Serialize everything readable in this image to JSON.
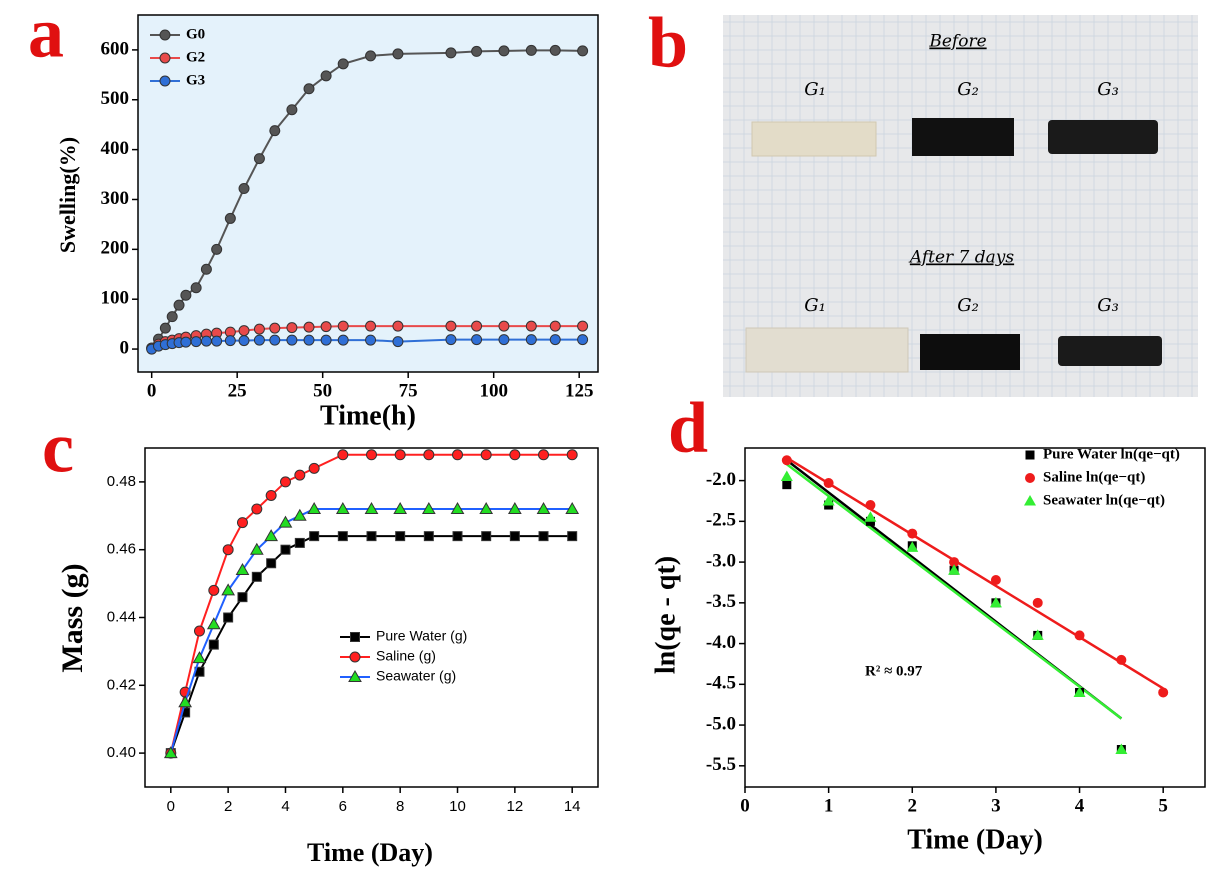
{
  "panel_labels": [
    "a",
    "b",
    "c",
    "d"
  ],
  "photo": {
    "rows": [
      {
        "title": "Before",
        "labels": [
          "G₁",
          "G₂",
          "G₃"
        ]
      },
      {
        "title": "After 7 days",
        "labels": [
          "G₁",
          "G₂",
          "G₃"
        ]
      }
    ]
  },
  "chart_data": [
    {
      "type": "line",
      "xlabel": "Time(h)",
      "ylabel": "Swelling(%)",
      "background": "#e4f2fb",
      "legend": "upper left",
      "x": [
        0,
        2,
        4,
        6,
        8,
        10,
        13,
        16,
        19,
        23,
        27,
        31.5,
        36,
        41,
        46,
        51,
        56,
        64,
        72,
        87.5,
        95,
        103,
        111,
        118,
        126
      ],
      "series": [
        {
          "name": "G0",
          "color": "#555555",
          "marker": "circle",
          "values": [
            2,
            20,
            42,
            65,
            88,
            108,
            123,
            160,
            200,
            262,
            322,
            382,
            438,
            480,
            522,
            548,
            572,
            588,
            592,
            594,
            597,
            598,
            599,
            599,
            598
          ]
        },
        {
          "name": "G2",
          "color": "#e84a4a",
          "marker": "circle",
          "values": [
            2,
            10,
            15,
            18,
            21,
            24,
            27,
            30,
            32,
            34,
            37,
            40,
            42,
            43,
            44,
            45,
            46,
            46,
            46,
            46,
            46,
            46,
            46,
            46,
            46
          ]
        },
        {
          "name": "G3",
          "color": "#2f6fd6",
          "marker": "circle",
          "values": [
            0,
            6,
            9,
            11,
            13,
            14,
            15,
            16,
            16,
            17,
            17,
            18,
            18,
            18,
            18,
            18,
            18,
            18,
            15,
            19,
            19,
            19,
            19,
            19,
            19
          ]
        }
      ],
      "xlim": [
        -4,
        130.5
      ],
      "ylim": [
        -46,
        670
      ],
      "xticks": [
        0,
        25,
        50,
        75,
        100,
        125
      ],
      "yticks": [
        0,
        100,
        200,
        300,
        400,
        500,
        600
      ]
    },
    {
      "type": "line",
      "xlabel": "Time (Day)",
      "ylabel": "Mass (g)",
      "background": "#ffffff",
      "legend": "center",
      "x": [
        0,
        0.5,
        1,
        1.5,
        2,
        2.5,
        3,
        3.5,
        4,
        4.5,
        5,
        6,
        7,
        8,
        9,
        10,
        11,
        12,
        13,
        14
      ],
      "series": [
        {
          "name": "Pure Water (g)",
          "color": "#000000",
          "marker": "square",
          "values": [
            0.4,
            0.412,
            0.424,
            0.432,
            0.44,
            0.446,
            0.452,
            0.456,
            0.46,
            0.462,
            0.464,
            0.464,
            0.464,
            0.464,
            0.464,
            0.464,
            0.464,
            0.464,
            0.464,
            0.464
          ]
        },
        {
          "name": "Saline (g)",
          "color": "#ff2020",
          "marker": "circle",
          "values": [
            0.4,
            0.418,
            0.436,
            0.448,
            0.46,
            0.468,
            0.472,
            0.476,
            0.48,
            0.482,
            0.484,
            0.488,
            0.488,
            0.488,
            0.488,
            0.488,
            0.488,
            0.488,
            0.488,
            0.488
          ]
        },
        {
          "name": "Seawater (g)",
          "color": "#2060ff",
          "marker": "triangle",
          "marker_color": "#22dd22",
          "values": [
            0.4,
            0.415,
            0.428,
            0.438,
            0.448,
            0.454,
            0.46,
            0.464,
            0.468,
            0.47,
            0.472,
            0.472,
            0.472,
            0.472,
            0.472,
            0.472,
            0.472,
            0.472,
            0.472,
            0.472
          ]
        }
      ],
      "xlim": [
        -0.9,
        14.9
      ],
      "ylim": [
        0.39,
        0.49
      ],
      "xticks": [
        0,
        2,
        4,
        6,
        8,
        10,
        12,
        14
      ],
      "yticks": [
        {
          "value": 0.4,
          "label": "0.40"
        },
        {
          "value": 0.42,
          "label": "0.42"
        },
        {
          "value": 0.44,
          "label": "0.44"
        },
        {
          "value": 0.46,
          "label": "0.46"
        },
        {
          "value": 0.48,
          "label": "0.48"
        }
      ]
    },
    {
      "type": "scatter",
      "xlabel": "Time (Day)",
      "ylabel": "ln(qe - qt)",
      "background": "#ffffff",
      "legend": "upper right",
      "annotation": "R² ≈ 0.97",
      "series": [
        {
          "name": "Pure Water ln(qe−qt)",
          "color": "#000000",
          "marker": "square",
          "x": [
            0.5,
            1,
            1.5,
            2,
            2.5,
            3,
            3.5,
            4,
            4.5
          ],
          "values": [
            -2.05,
            -2.3,
            -2.5,
            -2.8,
            -3.1,
            -3.5,
            -3.9,
            -4.6,
            -5.3
          ]
        },
        {
          "name": "Saline ln(qe−qt)",
          "color": "#ee1c1c",
          "marker": "circle",
          "x": [
            0.5,
            1,
            1.5,
            2,
            2.5,
            3,
            3.5,
            4,
            4.5,
            5
          ],
          "values": [
            -1.75,
            -2.03,
            -2.3,
            -2.65,
            -3.0,
            -3.22,
            -3.5,
            -3.9,
            -4.2,
            -4.6
          ]
        },
        {
          "name": "Seawater ln(qe−qt)",
          "color": "#33ee33",
          "marker": "triangle",
          "x": [
            0.5,
            1,
            1.5,
            2,
            2.5,
            3,
            3.5,
            4,
            4.5
          ],
          "values": [
            -1.95,
            -2.25,
            -2.45,
            -2.82,
            -3.1,
            -3.5,
            -3.9,
            -4.6,
            -5.3
          ]
        }
      ],
      "fits": [
        {
          "color": "#000000",
          "x": [
            0.5,
            4.5
          ],
          "values": [
            -1.75,
            -4.92
          ]
        },
        {
          "color": "#ee1c1c",
          "x": [
            0.5,
            5
          ],
          "values": [
            -1.72,
            -4.55
          ]
        },
        {
          "color": "#33ee33",
          "x": [
            0.5,
            4.5
          ],
          "values": [
            -1.8,
            -4.92
          ]
        }
      ],
      "xlim": [
        0,
        5.5
      ],
      "ylim": [
        -5.76,
        -1.6
      ],
      "xticks": [
        0,
        1,
        2,
        3,
        4,
        5
      ],
      "yticks": [
        {
          "value": -2,
          "label": "-2.0"
        },
        {
          "value": -2.5,
          "label": "-2.5"
        },
        {
          "value": -3,
          "label": "-3.0"
        },
        {
          "value": -3.5,
          "label": "-3.5"
        },
        {
          "value": -4,
          "label": "-4.0"
        },
        {
          "value": -4.5,
          "label": "-4.5"
        },
        {
          "value": -5,
          "label": "-5.0"
        },
        {
          "value": -5.5,
          "label": "-5.5"
        }
      ]
    }
  ]
}
